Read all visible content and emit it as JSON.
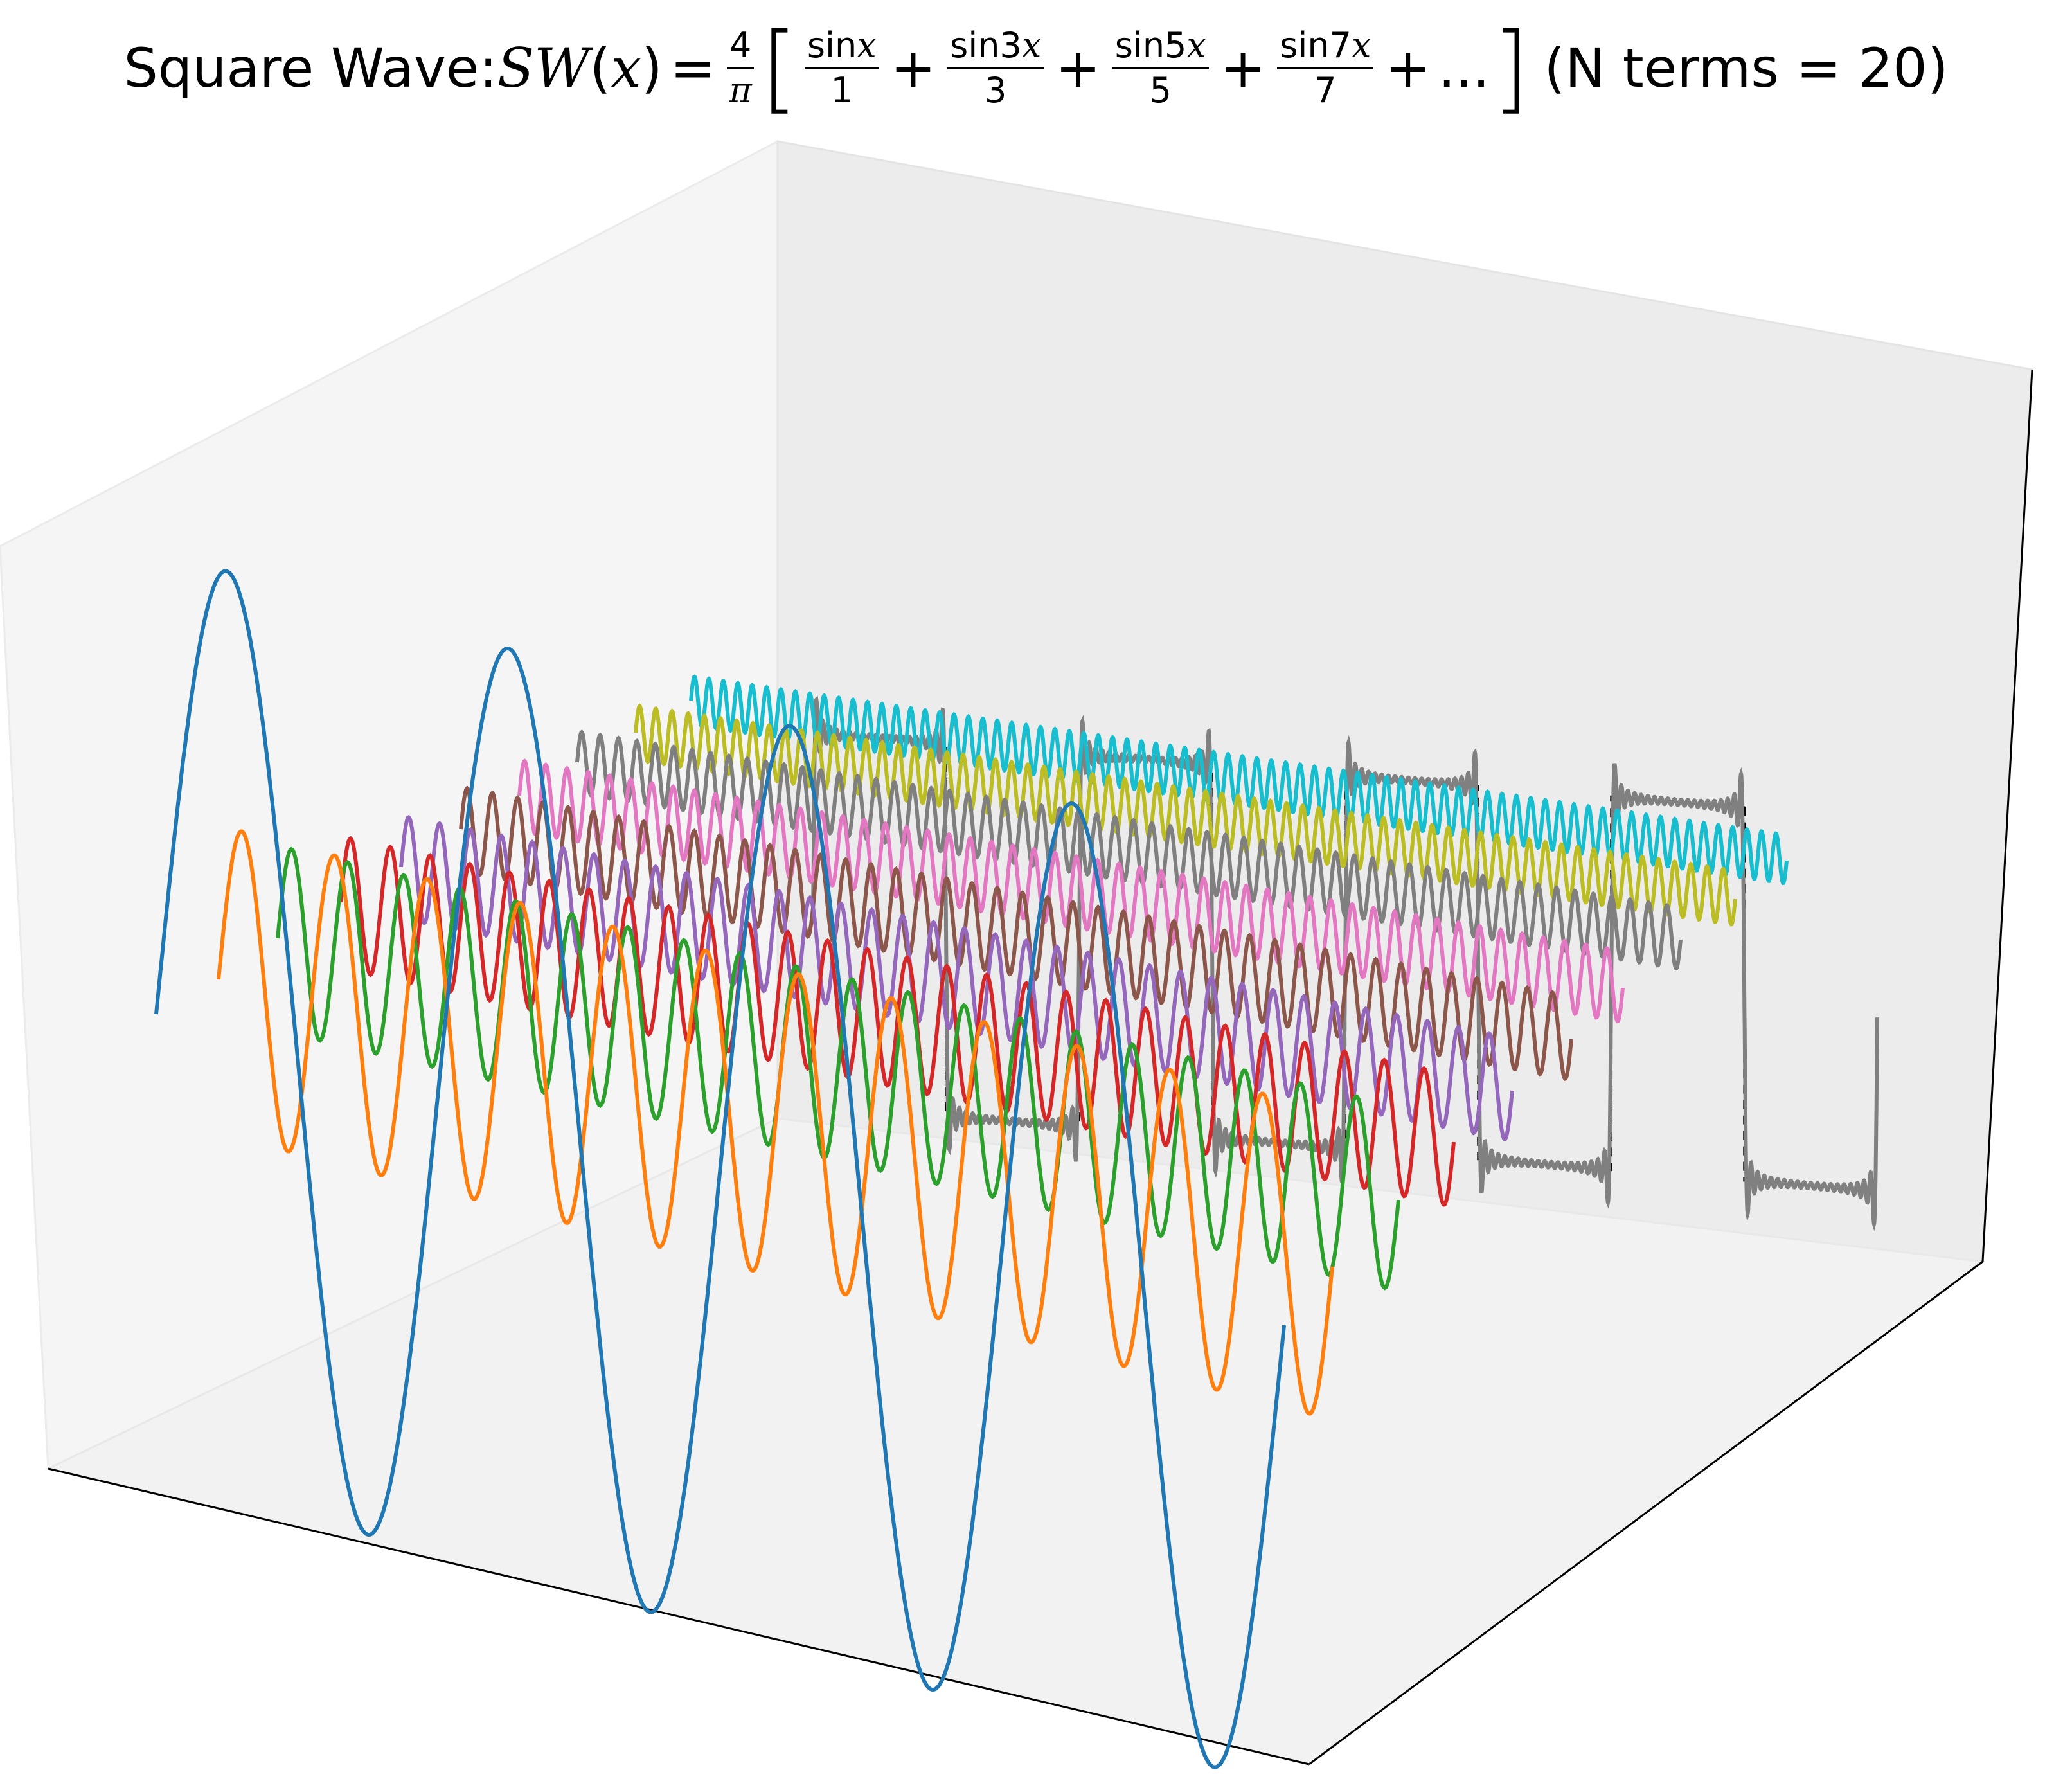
{
  "title": {
    "prefix": "Square Wave: ",
    "fn": "SW",
    "var": "x",
    "equals": "=",
    "coef_num": "4",
    "coef_den": "π",
    "terms": [
      {
        "num": "sin",
        "arg": "x",
        "den": "1"
      },
      {
        "num": "sin3",
        "arg": "x",
        "den": "3"
      },
      {
        "num": "sin5",
        "arg": "x",
        "den": "5"
      },
      {
        "num": "sin7",
        "arg": "x",
        "den": "7"
      }
    ],
    "plus": "+",
    "ellipsis": "...",
    "suffix": "(N terms = 20)"
  },
  "chart_data": {
    "type": "line",
    "projection": "3d",
    "n_terms": 20,
    "x_range": [
      0,
      25.13
    ],
    "periods": 4,
    "harmonics_shown": [
      1,
      3,
      5,
      7,
      9,
      11,
      13,
      15,
      17,
      19
    ],
    "series": [
      {
        "k": 1,
        "color": "#1f77b4"
      },
      {
        "k": 3,
        "color": "#ff7f0e"
      },
      {
        "k": 5,
        "color": "#2ca02c"
      },
      {
        "k": 7,
        "color": "#d62728"
      },
      {
        "k": 9,
        "color": "#9467bd"
      },
      {
        "k": 11,
        "color": "#8c564b"
      },
      {
        "k": 13,
        "color": "#e377c2"
      },
      {
        "k": 15,
        "color": "#7f7f7f"
      },
      {
        "k": 17,
        "color": "#bcbd22"
      },
      {
        "k": 19,
        "color": "#17becf"
      }
    ],
    "partial_sum_color": "#808080",
    "ideal_square_wave_color": "#000000",
    "ideal_square_wave_style": "dashed",
    "amplitude_formula": "4/(πk)",
    "axes_visible": false,
    "grid": false
  }
}
